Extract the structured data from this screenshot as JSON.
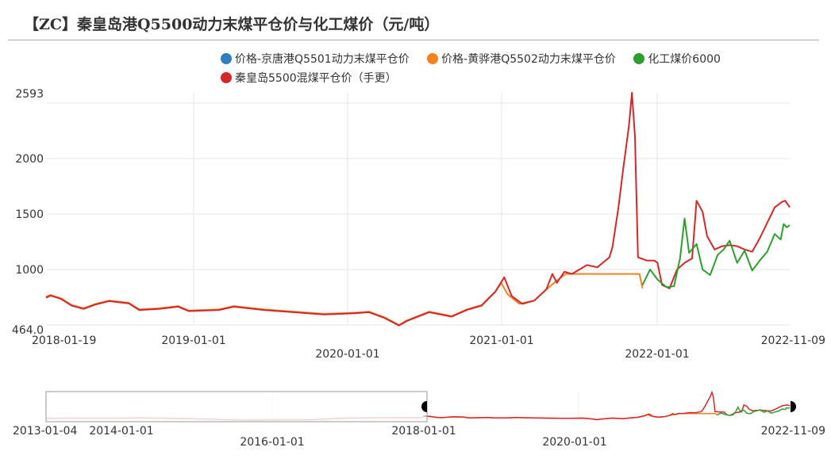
{
  "title": "【ZC】秦皇岛港Q5500动力末煤平仓价与化工煤价（元/吨）",
  "legend": [
    {
      "label": "价格-京唐港Q5501动力末煤平仓价",
      "color": "#2f7ebf"
    },
    {
      "label": "价格-黄骅港Q5502动力末煤平仓价",
      "color": "#f5821f"
    },
    {
      "label": "化工煤价6000",
      "color": "#2ca02c"
    },
    {
      "label": "秦皇岛5500混煤平仓价（手更）",
      "color": "#d62728"
    }
  ],
  "chart_data": {
    "type": "line",
    "title": "【ZC】秦皇岛港Q5500动力末煤平仓价与化工煤价（元/吨）",
    "xlabel": "",
    "ylabel": "元/吨",
    "ylim": [
      464.0,
      2593
    ],
    "y_ticks": [
      "2593",
      "2000",
      "1500",
      "1000",
      "464.0"
    ],
    "x_ticks": [
      "2018-01-19",
      "2019-01-01",
      "2020-01-01",
      "2021-01-01",
      "2022-01-01",
      "2022-11-09"
    ],
    "x_range": [
      "2018-01-19",
      "2022-11-09"
    ],
    "grid": true,
    "legend_position": "top",
    "series": [
      {
        "name": "价格-黄骅港Q5502动力末煤平仓价",
        "color": "#f5821f",
        "points": [
          [
            2018.05,
            755
          ],
          [
            2018.08,
            770
          ],
          [
            2018.15,
            740
          ],
          [
            2018.22,
            680
          ],
          [
            2018.3,
            650
          ],
          [
            2018.38,
            690
          ],
          [
            2018.47,
            720
          ],
          [
            2018.6,
            700
          ],
          [
            2018.67,
            640
          ],
          [
            2018.8,
            650
          ],
          [
            2018.93,
            670
          ],
          [
            2019.0,
            630
          ],
          [
            2019.2,
            640
          ],
          [
            2019.3,
            670
          ],
          [
            2019.5,
            640
          ],
          [
            2019.7,
            620
          ],
          [
            2019.9,
            600
          ],
          [
            2020.1,
            610
          ],
          [
            2020.2,
            620
          ],
          [
            2020.3,
            570
          ],
          [
            2020.4,
            500
          ],
          [
            2020.45,
            540
          ],
          [
            2020.6,
            620
          ],
          [
            2020.75,
            580
          ],
          [
            2020.85,
            640
          ],
          [
            2020.95,
            680
          ],
          [
            2021.04,
            800
          ],
          [
            2021.08,
            880
          ],
          [
            2021.12,
            780
          ],
          [
            2021.2,
            690
          ],
          [
            2021.3,
            720
          ],
          [
            2021.38,
            820
          ],
          [
            2021.45,
            900
          ],
          [
            2021.52,
            970
          ],
          [
            2021.52,
            960
          ],
          [
            2022.0,
            960
          ],
          [
            2022.02,
            830
          ]
        ]
      },
      {
        "name": "秦皇岛5500混煤平仓价（手更）",
        "color": "#d62728",
        "points": [
          [
            2018.05,
            745
          ],
          [
            2018.08,
            765
          ],
          [
            2018.15,
            735
          ],
          [
            2018.22,
            675
          ],
          [
            2018.3,
            645
          ],
          [
            2018.38,
            685
          ],
          [
            2018.47,
            715
          ],
          [
            2018.6,
            695
          ],
          [
            2018.67,
            635
          ],
          [
            2018.8,
            645
          ],
          [
            2018.93,
            665
          ],
          [
            2019.0,
            625
          ],
          [
            2019.2,
            635
          ],
          [
            2019.3,
            665
          ],
          [
            2019.5,
            635
          ],
          [
            2019.7,
            615
          ],
          [
            2019.9,
            595
          ],
          [
            2020.1,
            605
          ],
          [
            2020.2,
            615
          ],
          [
            2020.3,
            565
          ],
          [
            2020.4,
            495
          ],
          [
            2020.45,
            535
          ],
          [
            2020.6,
            615
          ],
          [
            2020.75,
            575
          ],
          [
            2020.85,
            635
          ],
          [
            2020.95,
            675
          ],
          [
            2021.04,
            800
          ],
          [
            2021.1,
            930
          ],
          [
            2021.15,
            760
          ],
          [
            2021.22,
            690
          ],
          [
            2021.3,
            720
          ],
          [
            2021.38,
            820
          ],
          [
            2021.42,
            960
          ],
          [
            2021.45,
            880
          ],
          [
            2021.5,
            980
          ],
          [
            2021.55,
            960
          ],
          [
            2021.65,
            1040
          ],
          [
            2021.72,
            1020
          ],
          [
            2021.8,
            1110
          ],
          [
            2021.82,
            1200
          ],
          [
            2021.86,
            1560
          ],
          [
            2021.89,
            1890
          ],
          [
            2021.93,
            2300
          ],
          [
            2021.95,
            2593
          ],
          [
            2021.97,
            2200
          ],
          [
            2021.99,
            1110
          ],
          [
            2022.05,
            1080
          ],
          [
            2022.1,
            1080
          ],
          [
            2022.12,
            1060
          ],
          [
            2022.15,
            860
          ],
          [
            2022.2,
            830
          ],
          [
            2022.25,
            1000
          ],
          [
            2022.3,
            1060
          ],
          [
            2022.35,
            1100
          ],
          [
            2022.38,
            1620
          ],
          [
            2022.42,
            1520
          ],
          [
            2022.45,
            1300
          ],
          [
            2022.5,
            1180
          ],
          [
            2022.55,
            1210
          ],
          [
            2022.6,
            1220
          ],
          [
            2022.65,
            1210
          ],
          [
            2022.7,
            1180
          ],
          [
            2022.75,
            1160
          ],
          [
            2022.8,
            1280
          ],
          [
            2022.85,
            1420
          ],
          [
            2022.9,
            1560
          ],
          [
            2022.95,
            1610
          ],
          [
            2022.97,
            1620
          ],
          [
            2023.0,
            1560
          ]
        ]
      },
      {
        "name": "化工煤价6000",
        "color": "#2ca02c",
        "points": [
          [
            2022.02,
            860
          ],
          [
            2022.07,
            1000
          ],
          [
            2022.12,
            910
          ],
          [
            2022.18,
            840
          ],
          [
            2022.23,
            850
          ],
          [
            2022.27,
            1100
          ],
          [
            2022.3,
            1460
          ],
          [
            2022.33,
            1150
          ],
          [
            2022.38,
            1230
          ],
          [
            2022.42,
            1000
          ],
          [
            2022.47,
            950
          ],
          [
            2022.52,
            1130
          ],
          [
            2022.56,
            1180
          ],
          [
            2022.6,
            1260
          ],
          [
            2022.65,
            1060
          ],
          [
            2022.7,
            1170
          ],
          [
            2022.75,
            990
          ],
          [
            2022.8,
            1080
          ],
          [
            2022.85,
            1160
          ],
          [
            2022.9,
            1320
          ],
          [
            2022.94,
            1270
          ],
          [
            2022.96,
            1410
          ],
          [
            2022.98,
            1380
          ],
          [
            2023.0,
            1400
          ]
        ]
      }
    ],
    "overview": {
      "x_ticks": [
        "2013-01-04",
        "2014-01-01",
        "2016-01-01",
        "2018-01-01",
        "2020-01-01",
        "2022-11-09"
      ],
      "selection": [
        "2018-01-01",
        "2022-11-09"
      ]
    }
  }
}
